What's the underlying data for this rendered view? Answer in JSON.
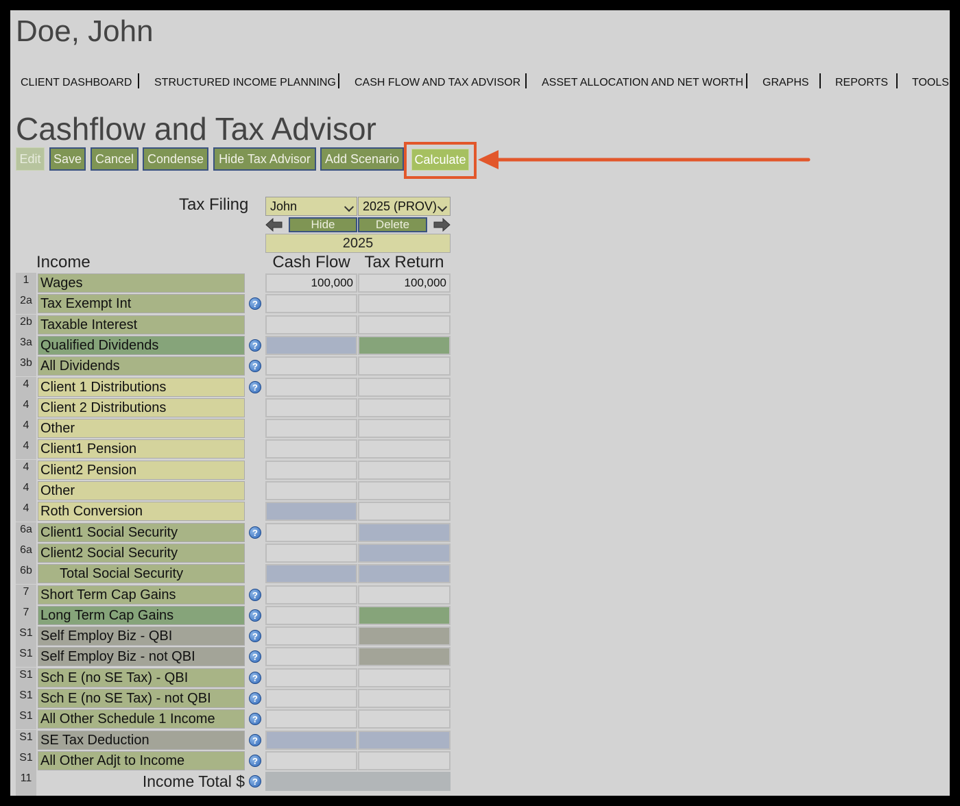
{
  "client": {
    "name": "Doe, John"
  },
  "nav": [
    {
      "label": "CLIENT DASHBOARD"
    },
    {
      "label": "STRUCTURED INCOME PLANNING"
    },
    {
      "label": "CASH FLOW AND TAX ADVISOR"
    },
    {
      "label": "ASSET ALLOCATION AND NET WORTH"
    },
    {
      "label": "GRAPHS"
    },
    {
      "label": "REPORTS"
    },
    {
      "label": "TOOLS"
    }
  ],
  "page": {
    "title": "Cashflow and Tax Advisor"
  },
  "toolbar": {
    "edit": "Edit",
    "save": "Save",
    "cancel": "Cancel",
    "condense": "Condense",
    "hide_tax_advisor": "Hide Tax Advisor",
    "add_scenario": "Add Scenario",
    "calculate": "Calculate"
  },
  "filing": {
    "label": "Tax Filing",
    "person_value": "John",
    "year_value": "2025 (PROV)",
    "hide": "Hide",
    "delete": "Delete",
    "year_header": "2025"
  },
  "table": {
    "income_header": "Income",
    "col_cashflow": "Cash Flow",
    "col_taxreturn": "Tax Return",
    "rows": [
      {
        "line": "1",
        "label": "Wages",
        "cashflow": "100,000",
        "taxreturn": "100,000",
        "help": false
      },
      {
        "line": "2a",
        "label": "Tax Exempt Int",
        "cashflow": "",
        "taxreturn": "",
        "help": true
      },
      {
        "line": "2b",
        "label": "Taxable Interest",
        "cashflow": "",
        "taxreturn": "",
        "help": false
      },
      {
        "line": "3a",
        "label": "Qualified Dividends",
        "cashflow": "",
        "taxreturn": "",
        "help": true
      },
      {
        "line": "3b",
        "label": "All Dividends",
        "cashflow": "",
        "taxreturn": "",
        "help": true
      },
      {
        "line": "4",
        "label": "Client 1 Distributions",
        "cashflow": "",
        "taxreturn": "",
        "help": true
      },
      {
        "line": "4",
        "label": "Client 2 Distributions",
        "cashflow": "",
        "taxreturn": "",
        "help": false
      },
      {
        "line": "4",
        "label": "Other",
        "cashflow": "",
        "taxreturn": "",
        "help": false
      },
      {
        "line": "4",
        "label": "Client1 Pension",
        "cashflow": "",
        "taxreturn": "",
        "help": false
      },
      {
        "line": "4",
        "label": "Client2 Pension",
        "cashflow": "",
        "taxreturn": "",
        "help": false
      },
      {
        "line": "4",
        "label": "Other",
        "cashflow": "",
        "taxreturn": "",
        "help": false
      },
      {
        "line": "4",
        "label": "Roth Conversion",
        "cashflow": "",
        "taxreturn": "",
        "help": false
      },
      {
        "line": "6a",
        "label": "Client1 Social Security",
        "cashflow": "",
        "taxreturn": "",
        "help": true
      },
      {
        "line": "6a",
        "label": "Client2 Social Security",
        "cashflow": "",
        "taxreturn": "",
        "help": false
      },
      {
        "line": "6b",
        "label": "Total Social Security",
        "cashflow": "",
        "taxreturn": "",
        "help": false
      },
      {
        "line": "7",
        "label": "Short Term Cap Gains",
        "cashflow": "",
        "taxreturn": "",
        "help": true
      },
      {
        "line": "7",
        "label": "Long Term Cap Gains",
        "cashflow": "",
        "taxreturn": "",
        "help": true
      },
      {
        "line": "S1",
        "label": "Self Employ Biz - QBI",
        "cashflow": "",
        "taxreturn": "",
        "help": true
      },
      {
        "line": "S1",
        "label": "Self Employ Biz - not QBI",
        "cashflow": "",
        "taxreturn": "",
        "help": true
      },
      {
        "line": "S1",
        "label": "Sch E (no SE Tax) - QBI",
        "cashflow": "",
        "taxreturn": "",
        "help": true
      },
      {
        "line": "S1",
        "label": "Sch E (no SE Tax) - not QBI",
        "cashflow": "",
        "taxreturn": "",
        "help": true
      },
      {
        "line": "S1",
        "label": "All Other Schedule 1 Income",
        "cashflow": "",
        "taxreturn": "",
        "help": true
      },
      {
        "line": "S1",
        "label": "SE Tax Deduction",
        "cashflow": "",
        "taxreturn": "",
        "help": true
      },
      {
        "line": "S1",
        "label": "All Other Adjt to Income",
        "cashflow": "",
        "taxreturn": "",
        "help": true
      }
    ],
    "total": {
      "line": "11",
      "label": "Income Total $"
    }
  },
  "colors": {
    "accent_highlight": "#e2572b",
    "button_green": "#7f9554",
    "calculate_green": "#a6c060"
  }
}
